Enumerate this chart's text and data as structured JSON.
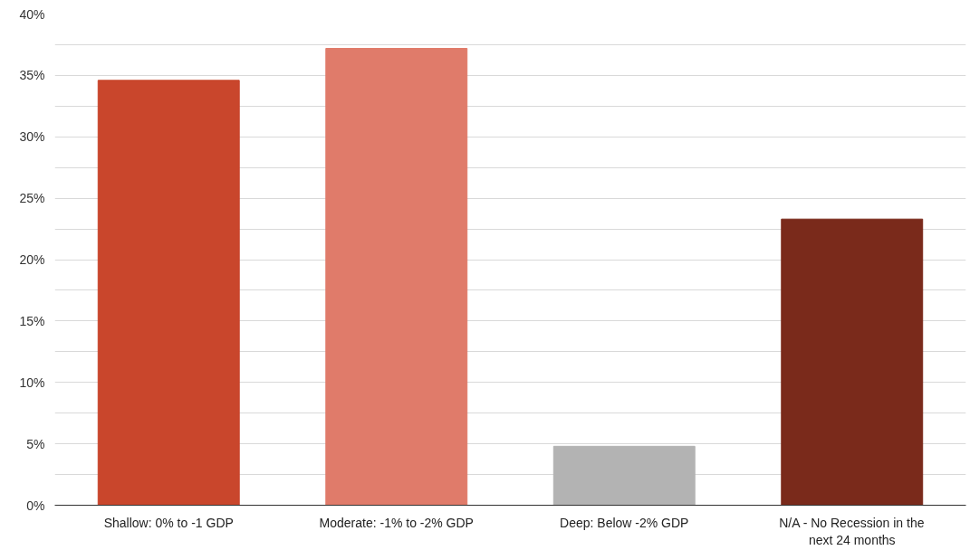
{
  "chart_data": {
    "type": "bar",
    "categories": [
      "Shallow: 0% to -1 GDP",
      "Moderate: -1% to -2% GDP",
      "Deep: Below -2% GDP",
      "N/A - No Recession in the next 24 months"
    ],
    "values": [
      34.6,
      37.2,
      4.8,
      23.3
    ],
    "colors": [
      "#c9462c",
      "#e07b6a",
      "#b3b3b3",
      "#7a2a1b"
    ],
    "ylim": [
      0,
      40
    ],
    "yticks": [
      {
        "value": 0,
        "label": "0%"
      },
      {
        "value": 2.5,
        "label": null
      },
      {
        "value": 5,
        "label": "5%"
      },
      {
        "value": 7.5,
        "label": null
      },
      {
        "value": 10,
        "label": "10%"
      },
      {
        "value": 12.5,
        "label": null
      },
      {
        "value": 15,
        "label": "15%"
      },
      {
        "value": 17.5,
        "label": null
      },
      {
        "value": 20,
        "label": "20%"
      },
      {
        "value": 22.5,
        "label": null
      },
      {
        "value": 25,
        "label": "25%"
      },
      {
        "value": 27.5,
        "label": null
      },
      {
        "value": 30,
        "label": "30%"
      },
      {
        "value": 32.5,
        "label": null
      },
      {
        "value": 35,
        "label": "35%"
      },
      {
        "value": 37.5,
        "label": null
      },
      {
        "value": 40,
        "label": "40%"
      }
    ],
    "grid": "y"
  }
}
